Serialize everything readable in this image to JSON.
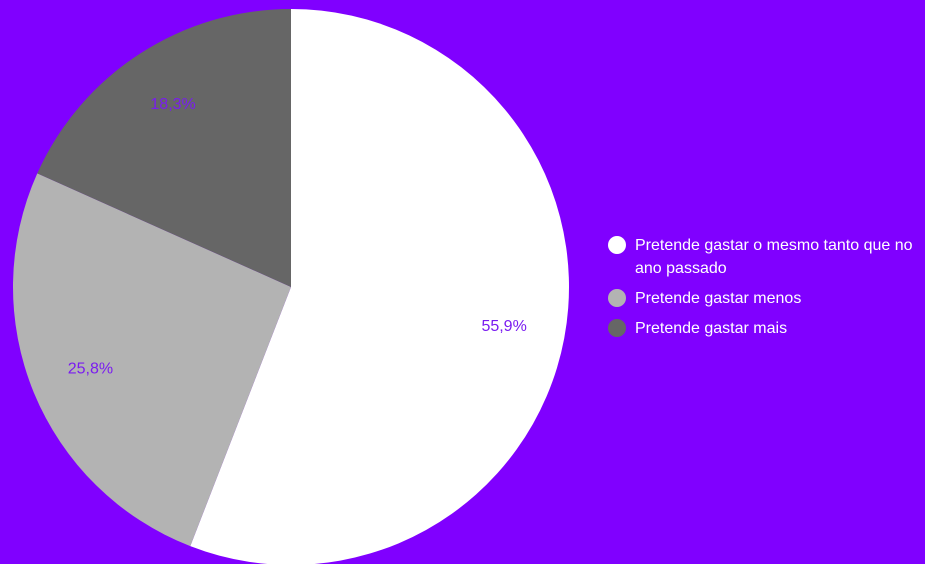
{
  "background_color": "#8000ff",
  "chart_data": {
    "type": "pie",
    "title": "",
    "slices": [
      {
        "label": "Pretende gastar o mesmo tanto que no ano passado",
        "value": 55.9,
        "value_label": "55,9%",
        "color": "#ffffff"
      },
      {
        "label": "Pretende gastar menos",
        "value": 25.8,
        "value_label": "25,8%",
        "color": "#b3b3b3"
      },
      {
        "label": "Pretende gastar mais",
        "value": 18.3,
        "value_label": "18,3%",
        "color": "#666666"
      }
    ],
    "legend_position": "right",
    "start_angle": "top",
    "direction": "clockwise",
    "value_label_color": "#7a1cf0"
  },
  "legend": {
    "items": [
      {
        "label": "Pretende gastar o mesmo tanto que no ano passado",
        "color": "#ffffff"
      },
      {
        "label": "Pretende gastar menos",
        "color": "#b3b3b3"
      },
      {
        "label": "Pretende gastar mais",
        "color": "#666666"
      }
    ]
  }
}
